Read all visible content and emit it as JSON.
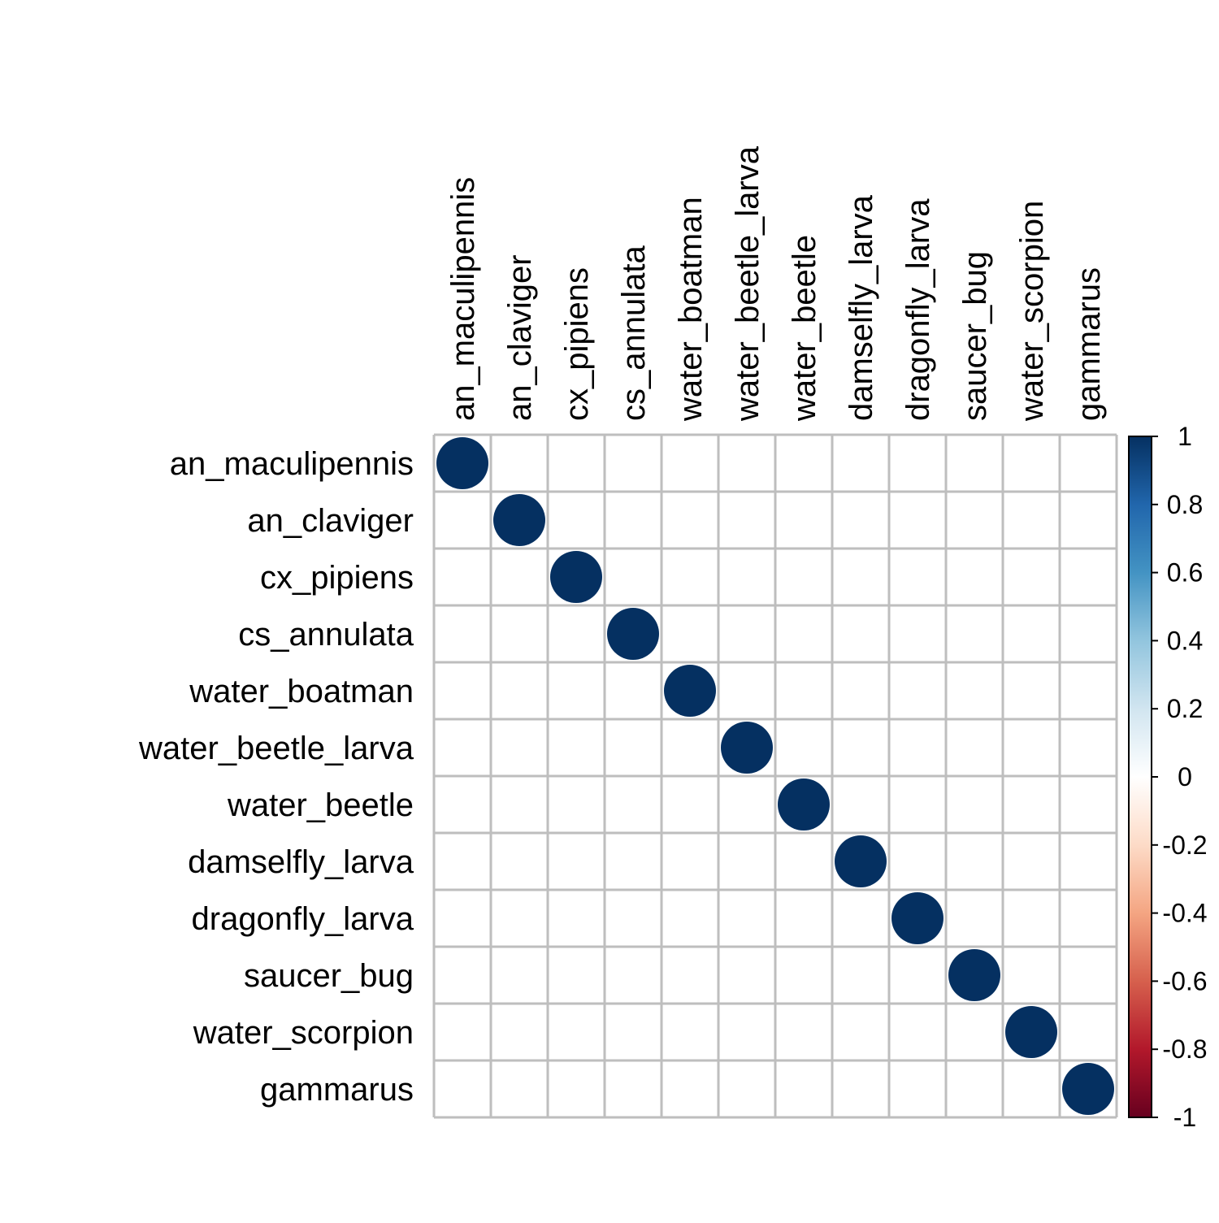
{
  "chart_data": {
    "type": "heatmap",
    "style": "correlation-matrix-circles",
    "title": "",
    "variables": [
      "an_maculipennis",
      "an_claviger",
      "cx_pipiens",
      "cs_annulata",
      "water_boatman",
      "water_beetle_larva",
      "water_beetle",
      "damselfly_larva",
      "dragonfly_larva",
      "saucer_bug",
      "water_scorpion",
      "gammarus"
    ],
    "matrix": [
      [
        1,
        0,
        0,
        0,
        0,
        0,
        0,
        0,
        0,
        0,
        0,
        0
      ],
      [
        0,
        1,
        0,
        0,
        0,
        0,
        0,
        0,
        0,
        0,
        0,
        0
      ],
      [
        0,
        0,
        1,
        0,
        0,
        0,
        0,
        0,
        0,
        0,
        0,
        0
      ],
      [
        0,
        0,
        0,
        1,
        0,
        0,
        0,
        0,
        0,
        0,
        0,
        0
      ],
      [
        0,
        0,
        0,
        0,
        1,
        0,
        0,
        0,
        0,
        0,
        0,
        0
      ],
      [
        0,
        0,
        0,
        0,
        0,
        1,
        0,
        0,
        0,
        0,
        0,
        0
      ],
      [
        0,
        0,
        0,
        0,
        0,
        0,
        1,
        0,
        0,
        0,
        0,
        0
      ],
      [
        0,
        0,
        0,
        0,
        0,
        0,
        0,
        1,
        0,
        0,
        0,
        0
      ],
      [
        0,
        0,
        0,
        0,
        0,
        0,
        0,
        0,
        1,
        0,
        0,
        0
      ],
      [
        0,
        0,
        0,
        0,
        0,
        0,
        0,
        0,
        0,
        1,
        0,
        0
      ],
      [
        0,
        0,
        0,
        0,
        0,
        0,
        0,
        0,
        0,
        0,
        1,
        0
      ],
      [
        0,
        0,
        0,
        0,
        0,
        0,
        0,
        0,
        0,
        0,
        0,
        1
      ]
    ],
    "color_range": [
      -1,
      1
    ],
    "colorbar": {
      "ticks": [
        1,
        0.8,
        0.6,
        0.4,
        0.2,
        0,
        -0.2,
        -0.4,
        -0.6,
        -0.8,
        -1
      ],
      "tick_labels": [
        "1",
        "0.8",
        "0.6",
        "0.4",
        "0.2",
        "0",
        "-0.2",
        "-0.4",
        "-0.6",
        "-0.8",
        "-1"
      ],
      "placement": "right"
    },
    "grid": true,
    "colors": {
      "positive_end": "#053061",
      "negative_end": "#67001F",
      "mid": "#FFFFFF",
      "grid": "#BEBEBE"
    }
  }
}
